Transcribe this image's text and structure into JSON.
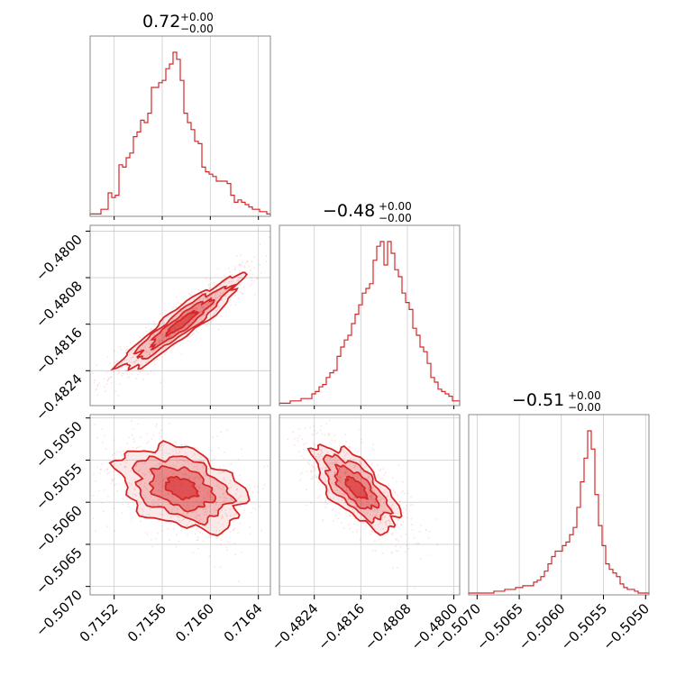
{
  "chart_data": {
    "type": "corner",
    "color": "#d62728",
    "grid": true,
    "titles": [
      {
        "value": "0.72",
        "upper": "+0.00",
        "lower": "−0.00"
      },
      {
        "value": "−0.48",
        "upper": "+0.00",
        "lower": "−0.00"
      },
      {
        "value": "−0.51",
        "upper": "+0.00",
        "lower": "−0.00"
      }
    ],
    "parameters": [
      {
        "range": [
          0.715,
          0.7165
        ],
        "ticks": [
          0.7152,
          0.7156,
          0.716,
          0.7164
        ],
        "tick_labels": [
          "0.7152",
          "0.7156",
          "0.7160",
          "0.7164"
        ]
      },
      {
        "range": [
          -0.483,
          -0.4799
        ],
        "ticks": [
          -0.4824,
          -0.4816,
          -0.4808,
          -0.48
        ],
        "tick_labels": [
          "−0.4824",
          "−0.4816",
          "−0.4808",
          "−0.4800"
        ]
      },
      {
        "range": [
          -0.5071,
          -0.50496
        ],
        "ticks": [
          -0.507,
          -0.5065,
          -0.506,
          -0.5055,
          -0.505
        ],
        "tick_labels": [
          "−0.5070",
          "−0.5065",
          "−0.5060",
          "−0.5055",
          "−0.5050"
        ]
      }
    ],
    "histograms": [
      [
        1,
        1,
        1,
        3,
        3,
        10,
        8,
        9,
        22,
        21,
        25,
        27,
        34,
        36,
        41,
        40,
        44,
        55,
        55,
        57,
        58,
        63,
        65,
        70,
        67,
        58,
        44,
        40,
        37,
        32,
        31,
        21,
        19,
        18,
        17,
        15,
        15,
        15,
        14,
        9,
        6,
        7,
        6,
        5,
        4,
        3,
        3,
        2,
        2,
        1
      ],
      [
        1,
        1,
        1,
        2,
        2,
        2,
        3,
        3,
        3,
        5,
        6,
        8,
        9,
        12,
        14,
        15,
        21,
        25,
        28,
        30,
        35,
        39,
        43,
        48,
        50,
        52,
        62,
        68,
        70,
        60,
        70,
        65,
        58,
        55,
        48,
        44,
        41,
        33,
        30,
        25,
        23,
        18,
        12,
        10,
        7,
        6,
        5,
        4,
        2,
        2
      ],
      [
        1,
        1,
        1,
        1,
        1,
        1,
        1,
        2,
        2,
        2,
        3,
        3,
        3,
        4,
        4,
        5,
        5,
        5,
        7,
        8,
        10,
        13,
        17,
        21,
        24,
        24,
        27,
        29,
        33,
        37,
        48,
        62,
        75,
        90,
        80,
        55,
        38,
        27,
        17,
        14,
        12,
        10,
        6,
        4,
        3,
        3,
        2,
        1,
        1,
        1
      ]
    ],
    "pairs": [
      {
        "x_param": 0,
        "y_param": 1,
        "center": [
          0.71576,
          -0.48158
        ],
        "sd": [
          0.00025,
          0.0004
        ],
        "corr": 0.93
      },
      {
        "x_param": 0,
        "y_param": 2,
        "center": [
          0.71576,
          -0.50583
        ],
        "sd": [
          0.00026,
          0.00025
        ],
        "corr": -0.35
      },
      {
        "x_param": 1,
        "y_param": 2,
        "center": [
          -0.48168,
          -0.50583
        ],
        "sd": [
          0.00036,
          0.00025
        ],
        "corr": -0.68
      }
    ]
  }
}
